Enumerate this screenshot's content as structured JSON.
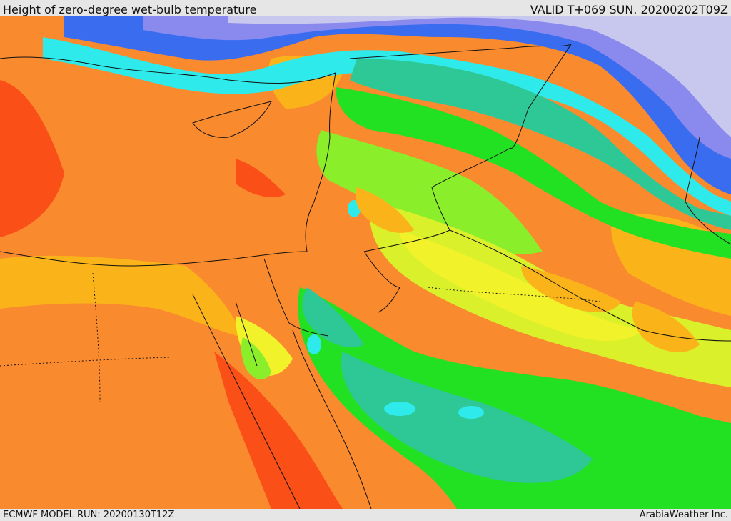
{
  "header": {
    "title": "Height of zero-degree wet-bulb temperature",
    "valid_time": "VALID T+069 SUN. 20200202T09Z"
  },
  "footer": {
    "model_run": "ECMWF MODEL RUN: 20200130T12Z",
    "credit": "ArabiaWeather Inc."
  },
  "map": {
    "field": "zero-degree wet-bulb height",
    "region": "Eastern Mediterranean and Middle East",
    "palette": {
      "very_low": "#c8c8ee",
      "low": "#8a8aee",
      "blue": "#3a6cf0",
      "cyan": "#2eeaea",
      "teal": "#2ec896",
      "green": "#22e022",
      "light_green": "#8aee2a",
      "yellow_green": "#daf02a",
      "yellow": "#f2f22a",
      "light_orange": "#fab41a",
      "orange": "#fa8a2e",
      "red_orange": "#fa5018"
    }
  }
}
